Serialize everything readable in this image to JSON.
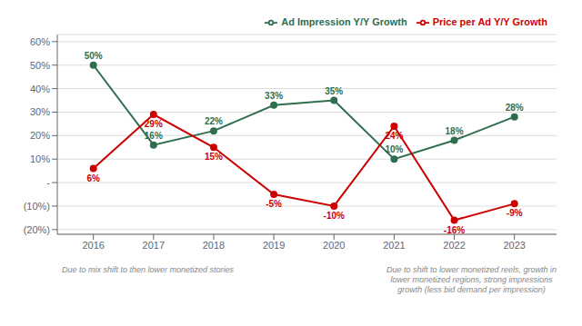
{
  "chart_data": {
    "type": "line",
    "x": [
      2016,
      2017,
      2018,
      2019,
      2020,
      2021,
      2022,
      2023
    ],
    "series": [
      {
        "name": "Ad Impression Y/Y Growth",
        "color": "#2e6e4e",
        "marker": "circle",
        "values": [
          50,
          16,
          22,
          33,
          35,
          10,
          18,
          28
        ],
        "value_labels": [
          "50%",
          "16%",
          "22%",
          "33%",
          "35%",
          "10%",
          "18%",
          "28%"
        ]
      },
      {
        "name": "Price per Ad Y/Y Growth",
        "color": "#cc0000",
        "marker": "circle",
        "values": [
          6,
          29,
          15,
          -5,
          -10,
          24,
          -16,
          -9
        ],
        "value_labels": [
          "6%",
          "29%",
          "15%",
          "-5%",
          "-10%",
          "24%",
          "-16%",
          "-9%"
        ]
      }
    ],
    "xlim": [
      2015.4,
      2023.7
    ],
    "xticks": [
      2016,
      2017,
      2018,
      2019,
      2020,
      2021,
      2022,
      2023
    ],
    "ylim": [
      -22,
      63
    ],
    "yticks": [
      {
        "value": -20,
        "label": "(20%)"
      },
      {
        "value": -10,
        "label": "(10%)"
      },
      {
        "value": 0,
        "label": "-"
      },
      {
        "value": 10,
        "label": "10%"
      },
      {
        "value": 20,
        "label": "20%"
      },
      {
        "value": 30,
        "label": "30%"
      },
      {
        "value": 40,
        "label": "40%"
      },
      {
        "value": 50,
        "label": "50%"
      },
      {
        "value": 60,
        "label": "60%"
      }
    ],
    "grid": true,
    "legend": "upper right",
    "data_labels": true,
    "annotations": [
      "Due to mix shift to then lower monetized stories",
      "Due to shift to lower monetized reels, growth in\nlower monetized regions, strong impressions\ngrowth (less bid demand per impression)"
    ]
  }
}
